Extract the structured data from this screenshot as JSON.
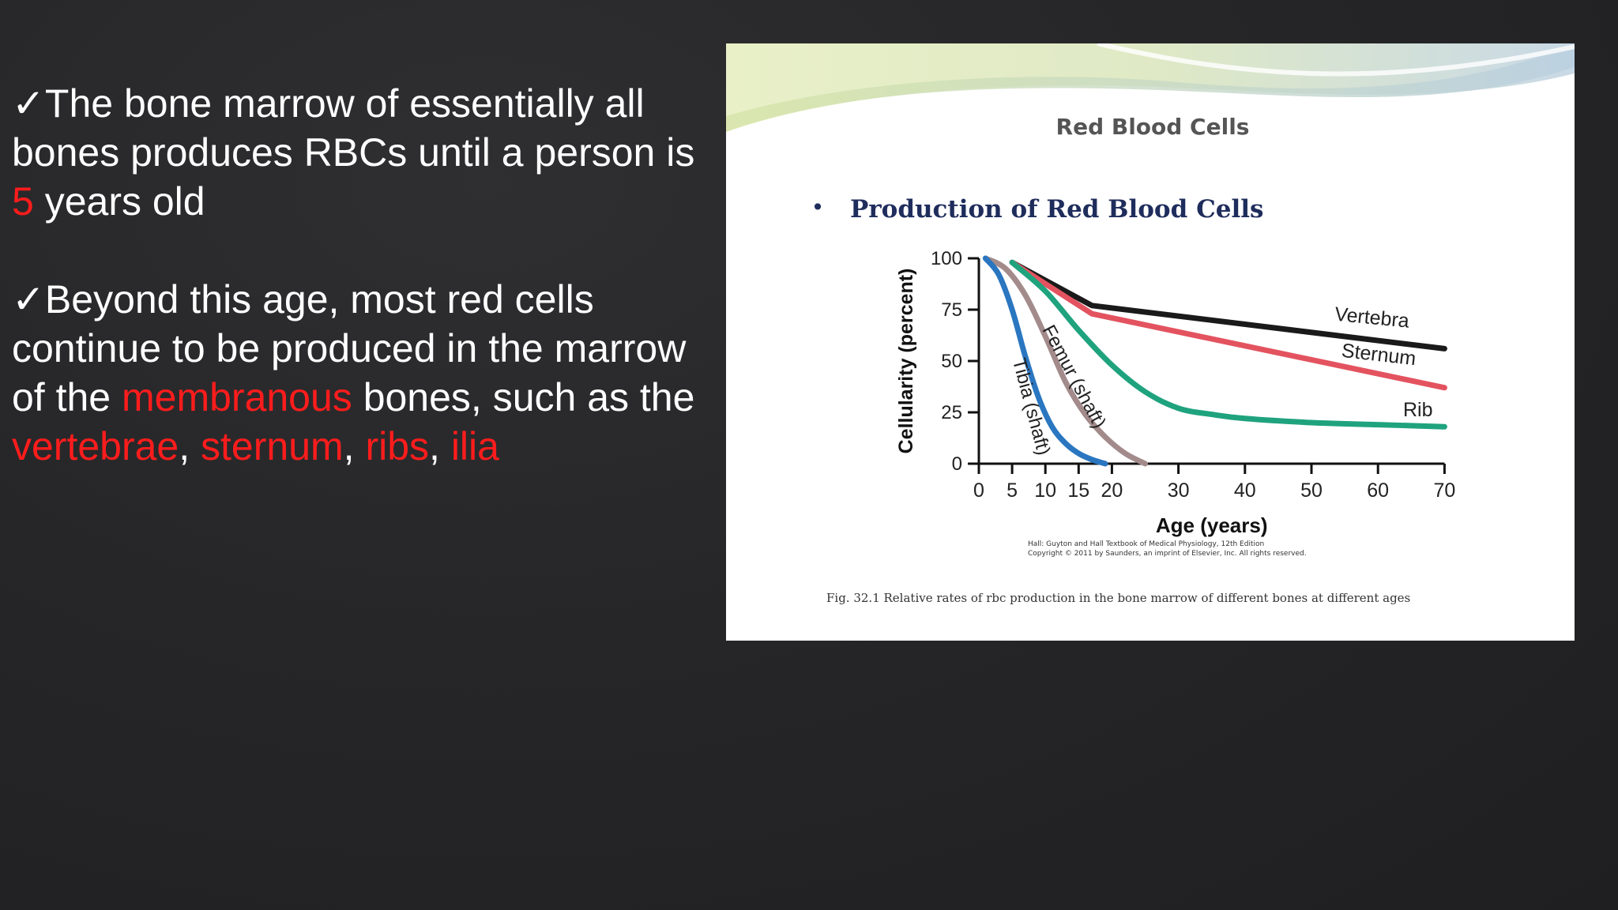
{
  "bullets": {
    "one": {
      "check": "✓",
      "text_1": "The bone marrow of essentially all bones produces RBCs until a person is",
      "hl_1": "5",
      "text_2": " years old"
    },
    "two": {
      "check": "✓",
      "text_1": "Beyond this age, most red cells continue to be produced in the marrow of the ",
      "hl_1": "membranous",
      "text_2": " bones, such as the ",
      "hl_2": "vertebrae",
      "sep_1": ", ",
      "hl_3": "sternum",
      "sep_2": ", ",
      "hl_4": "ribs",
      "sep_3": ", ",
      "hl_5": "ilia"
    }
  },
  "slide": {
    "header": "Red Blood Cells",
    "bullet_mark": "•",
    "bullet_title": "Production of Red Blood Cells",
    "credit_1": "Hall: Guyton and Hall Textbook of Medical Physiology, 12th Edition",
    "credit_2": "Copyright © 2011 by Saunders, an imprint of Elsevier, Inc. All rights reserved.",
    "caption": "Fig. 32.1  Relative rates of rbc production in the bone marrow of different bones at different ages"
  },
  "colors": {
    "highlight": "#ff1c1c",
    "vertebra": "#1a1a1a",
    "sternum": "#e3535f",
    "rib": "#1fa37e",
    "femur": "#a38b8b",
    "tibia": "#2a76c0",
    "title_blue": "#1f2d5c"
  },
  "chart_data": {
    "type": "line",
    "xlabel": "Age (years)",
    "ylabel": "Cellularity (percent)",
    "xlim": [
      0,
      70
    ],
    "ylim": [
      0,
      100
    ],
    "x_ticks": [
      0,
      5,
      10,
      15,
      20,
      30,
      40,
      50,
      60,
      70
    ],
    "y_ticks": [
      0,
      25,
      50,
      75,
      100
    ],
    "grid": false,
    "series": [
      {
        "name": "Vertebra",
        "color_key": "vertebra",
        "x": [
          5,
          17,
          70
        ],
        "y": [
          98,
          77,
          56
        ]
      },
      {
        "name": "Sternum",
        "color_key": "sternum",
        "x": [
          5,
          17,
          70
        ],
        "y": [
          98,
          73,
          37
        ]
      },
      {
        "name": "Rib",
        "color_key": "rib",
        "x": [
          5,
          10,
          15,
          20,
          25,
          30,
          35,
          40,
          50,
          60,
          70
        ],
        "y": [
          98,
          84,
          65,
          48,
          35,
          27,
          24,
          22,
          20,
          19,
          18
        ]
      },
      {
        "name": "Femur (shaft)",
        "color_key": "femur",
        "x": [
          1,
          4,
          7,
          10,
          13,
          16,
          19,
          22,
          25
        ],
        "y": [
          100,
          95,
          82,
          62,
          40,
          24,
          13,
          5,
          0
        ]
      },
      {
        "name": "Tibia (shaft)",
        "color_key": "tibia",
        "x": [
          1,
          3,
          5,
          7,
          9,
          11,
          13,
          15,
          17,
          19
        ],
        "y": [
          100,
          92,
          75,
          52,
          32,
          18,
          10,
          5,
          2,
          0
        ]
      }
    ]
  }
}
